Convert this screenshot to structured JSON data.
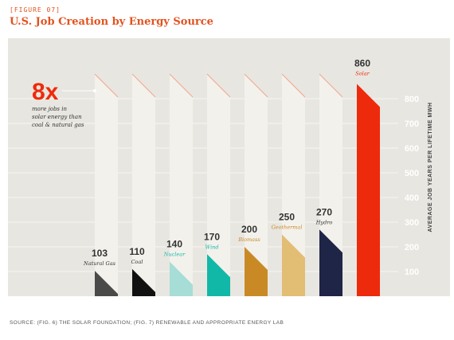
{
  "figure_label": "[FIGURE 07]",
  "title": "U.S. Job Creation by Energy Source",
  "source": "SOURCE: (FIG. 6) THE SOLAR FOUNDATION; (FIG. 7) RENEWABLE AND APPROPRIATE ENERGY LAB",
  "callout": {
    "big": "8x",
    "lines": [
      "more jobs in",
      "solar energy than",
      "coal & natural gas"
    ]
  },
  "chart_data": {
    "type": "bar",
    "title": "U.S. Job Creation by Energy Source",
    "ylabel": "AVERAGE JOB YEARS PER LIFETIME MWH",
    "ylim": [
      0,
      900
    ],
    "yticks": [
      100,
      200,
      300,
      400,
      500,
      600,
      700,
      800
    ],
    "grid": true,
    "categories": [
      "Natural Gas",
      "Coal",
      "Nuclear",
      "Wind",
      "Biomass",
      "Geothermal",
      "Hydro",
      "Solar"
    ],
    "values": [
      103,
      110,
      140,
      170,
      200,
      250,
      270,
      860
    ],
    "value_labels": [
      "103",
      "110",
      "140",
      "170",
      "200",
      "250",
      "270",
      "860"
    ],
    "colors": [
      "#4a4a48",
      "#111111",
      "#a6ddd6",
      "#12b8a7",
      "#c98a26",
      "#e2bd74",
      "#1f2547",
      "#ee2a0c"
    ],
    "label_colors": [
      "#333333",
      "#333333",
      "#12b8a7",
      "#12b8a7",
      "#c98a26",
      "#c98a26",
      "#333333",
      "#ee2a0c"
    ]
  }
}
